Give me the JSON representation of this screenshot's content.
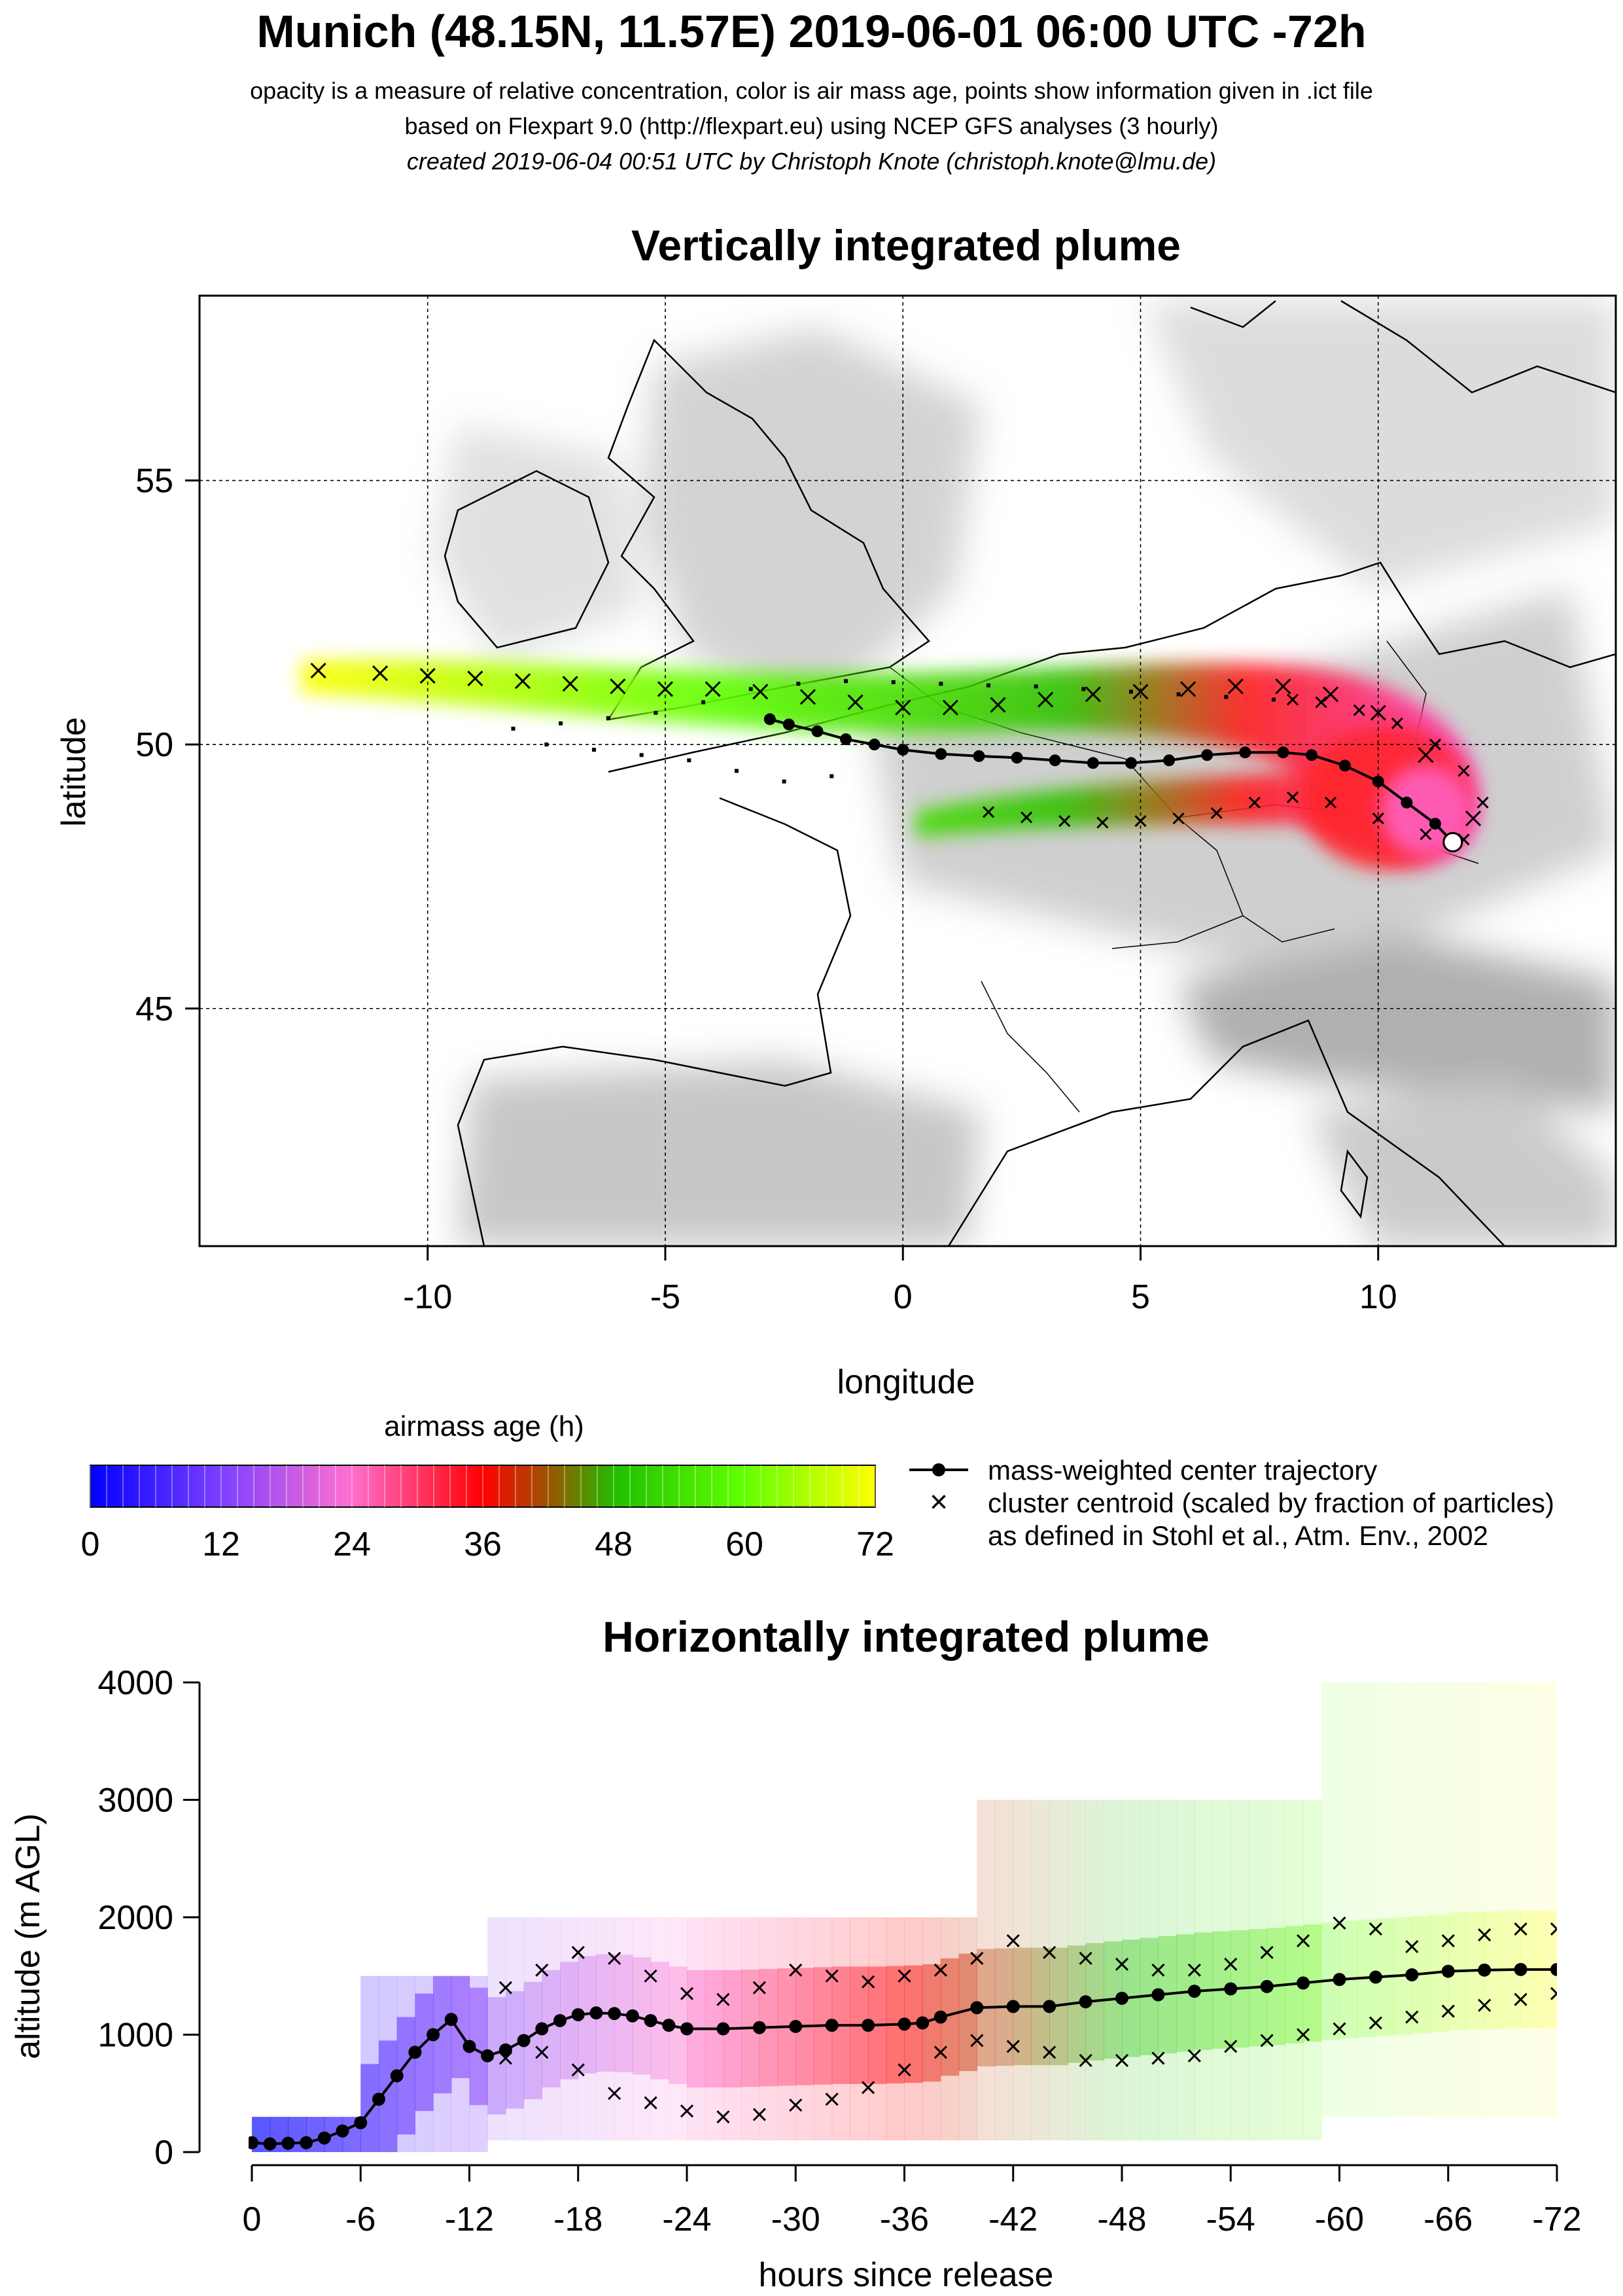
{
  "header": {
    "title": "Munich (48.15N, 11.57E) 2019-06-01 06:00 UTC -72h",
    "line1": "opacity is a measure of relative concentration, color is air mass age, points show information given in .ict file",
    "line2": "based on Flexpart 9.0 (http://flexpart.eu) using NCEP GFS analyses (3 hourly)",
    "line3": "created 2019-06-04 00:51 UTC by Christoph Knote (christoph.knote@lmu.de)"
  },
  "colors": {
    "age_0": "#0000ff",
    "age_24": "#ff40c0",
    "age_36": "#ff0000",
    "age_48": "#20c000",
    "age_60": "#50ff00",
    "age_72": "#ffff00",
    "terrain": "#9a9a9a",
    "grid": "#000000"
  },
  "chart_data": [
    {
      "type": "scatter",
      "title": "Vertically integrated plume",
      "xlabel": "longitude",
      "ylabel": "latitude",
      "xlim": [
        -14.8,
        15
      ],
      "ylim": [
        40.5,
        58.5
      ],
      "xticks": [
        -10,
        -5,
        0,
        5,
        10
      ],
      "yticks": [
        45,
        50,
        55
      ],
      "grid": true,
      "legend_title": "airmass age (h)",
      "colorbar_ticks": [
        0,
        12,
        24,
        36,
        48,
        60,
        72
      ],
      "legend": [
        "mass-weighted center trajectory",
        "cluster centroid (scaled by fraction of particles)",
        "as defined in Stohl et al., Atm. Env., 2002"
      ],
      "center_trajectory": {
        "lon": [
          11.57,
          11.2,
          10.6,
          10.0,
          9.3,
          8.6,
          8.0,
          7.2,
          6.4,
          5.6,
          4.8,
          4.0,
          3.2,
          2.4,
          1.6,
          0.8,
          0.0,
          -0.6,
          -1.2,
          -1.8,
          -2.4,
          -2.8
        ],
        "lat": [
          48.15,
          48.5,
          48.9,
          49.3,
          49.6,
          49.8,
          49.85,
          49.85,
          49.8,
          49.7,
          49.65,
          49.65,
          49.7,
          49.75,
          49.78,
          49.82,
          49.9,
          50.0,
          50.1,
          50.25,
          50.38,
          50.48
        ]
      },
      "cluster_tracks": [
        {
          "lon": [
            12.0,
            11.0,
            10.0,
            9.0,
            8.0,
            7.0,
            6.0,
            5.0,
            4.0,
            3.0,
            2.0,
            1.0,
            0.0,
            -1.0,
            -2.0,
            -3.0,
            -4.0,
            -5.0,
            -6.0,
            -7.0,
            -8.0,
            -9.0,
            -10.0,
            -11.0,
            -12.3
          ],
          "lat": [
            48.6,
            49.8,
            50.6,
            50.95,
            51.1,
            51.1,
            51.05,
            51.0,
            50.95,
            50.85,
            50.75,
            50.7,
            50.7,
            50.8,
            50.9,
            51.0,
            51.05,
            51.05,
            51.1,
            51.15,
            51.2,
            51.25,
            51.3,
            51.35,
            51.4
          ]
        },
        {
          "lon": [
            11.8,
            11.0,
            10.0,
            9.0,
            8.2,
            7.4,
            6.6,
            5.8,
            5.0,
            4.2,
            3.4,
            2.6,
            1.8
          ],
          "lat": [
            48.2,
            48.3,
            48.6,
            48.9,
            49.0,
            48.9,
            48.7,
            48.6,
            48.55,
            48.52,
            48.55,
            48.62,
            48.72
          ]
        },
        {
          "lon": [
            12.2,
            11.8,
            11.2,
            10.4,
            9.6,
            8.8,
            8.2
          ],
          "lat": [
            48.9,
            49.5,
            50.0,
            50.4,
            50.65,
            50.8,
            50.85
          ]
        }
      ],
      "cluster_points": {
        "lon": [
          7.8,
          6.8,
          5.8,
          4.8,
          3.8,
          2.8,
          1.8,
          0.8,
          -0.2,
          -1.2,
          -2.2,
          -3.2,
          -4.2,
          -5.2,
          -6.2,
          -7.2,
          -8.2,
          -1.5,
          -2.5,
          -3.5,
          -4.5,
          -5.5,
          -6.5,
          -7.5
        ],
        "lat": [
          50.85,
          50.9,
          50.95,
          51.0,
          51.05,
          51.1,
          51.12,
          51.15,
          51.18,
          51.2,
          51.15,
          51.05,
          50.8,
          50.6,
          50.5,
          50.4,
          50.3,
          49.4,
          49.3,
          49.5,
          49.7,
          49.8,
          49.9,
          50.0
        ]
      }
    },
    {
      "type": "line",
      "title": "Horizontally integrated plume",
      "xlabel": "hours since release",
      "ylabel": "altitude (m AGL)",
      "xlim": [
        0,
        -72
      ],
      "ylim": [
        0,
        4000
      ],
      "xticks": [
        0,
        -6,
        -12,
        -18,
        -24,
        -30,
        -36,
        -42,
        -48,
        -54,
        -60,
        -66,
        -72
      ],
      "yticks": [
        0,
        1000,
        2000,
        3000,
        4000
      ],
      "center_trajectory": {
        "x": [
          0,
          -1,
          -2,
          -3,
          -4,
          -5,
          -6,
          -7,
          -8,
          -9,
          -10,
          -11,
          -12,
          -13,
          -14,
          -15,
          -16,
          -17,
          -18,
          -19,
          -20,
          -21,
          -22,
          -23,
          -24,
          -26,
          -28,
          -30,
          -32,
          -34,
          -36,
          -37,
          -38,
          -40,
          -42,
          -44,
          -46,
          -48,
          -50,
          -52,
          -54,
          -56,
          -58,
          -60,
          -62,
          -64,
          -66,
          -68,
          -70,
          -72
        ],
        "y": [
          80,
          70,
          75,
          80,
          120,
          180,
          250,
          450,
          650,
          850,
          1000,
          1130,
          900,
          820,
          870,
          950,
          1050,
          1120,
          1170,
          1185,
          1180,
          1160,
          1120,
          1080,
          1050,
          1050,
          1060,
          1070,
          1080,
          1080,
          1090,
          1100,
          1150,
          1230,
          1240,
          1240,
          1280,
          1310,
          1340,
          1370,
          1390,
          1410,
          1440,
          1470,
          1490,
          1510,
          1540,
          1550,
          1555,
          1555
        ]
      },
      "cluster_upper": {
        "x": [
          -14,
          -16,
          -18,
          -20,
          -22,
          -24,
          -26,
          -28,
          -30,
          -32,
          -34,
          -36,
          -38,
          -40,
          -42,
          -44,
          -46,
          -48,
          -50,
          -52,
          -54,
          -56,
          -58,
          -60,
          -62,
          -64,
          -66,
          -68,
          -70,
          -72
        ],
        "y": [
          1400,
          1550,
          1700,
          1650,
          1500,
          1350,
          1300,
          1400,
          1550,
          1500,
          1450,
          1500,
          1550,
          1650,
          1800,
          1700,
          1650,
          1600,
          1550,
          1550,
          1600,
          1700,
          1800,
          1950,
          1900,
          1750,
          1800,
          1850,
          1900,
          1900
        ]
      },
      "cluster_lower": {
        "x": [
          -14,
          -16,
          -18,
          -20,
          -22,
          -24,
          -26,
          -28,
          -30,
          -32,
          -34,
          -36,
          -38,
          -40,
          -42,
          -44,
          -46,
          -48,
          -50,
          -52,
          -54,
          -56,
          -58,
          -60,
          -62,
          -64,
          -66,
          -68,
          -70,
          -72
        ],
        "y": [
          800,
          850,
          700,
          500,
          420,
          350,
          300,
          320,
          400,
          450,
          550,
          700,
          850,
          950,
          900,
          850,
          780,
          780,
          800,
          820,
          900,
          950,
          1000,
          1050,
          1100,
          1150,
          1200,
          1250,
          1300,
          1350
        ]
      }
    }
  ]
}
